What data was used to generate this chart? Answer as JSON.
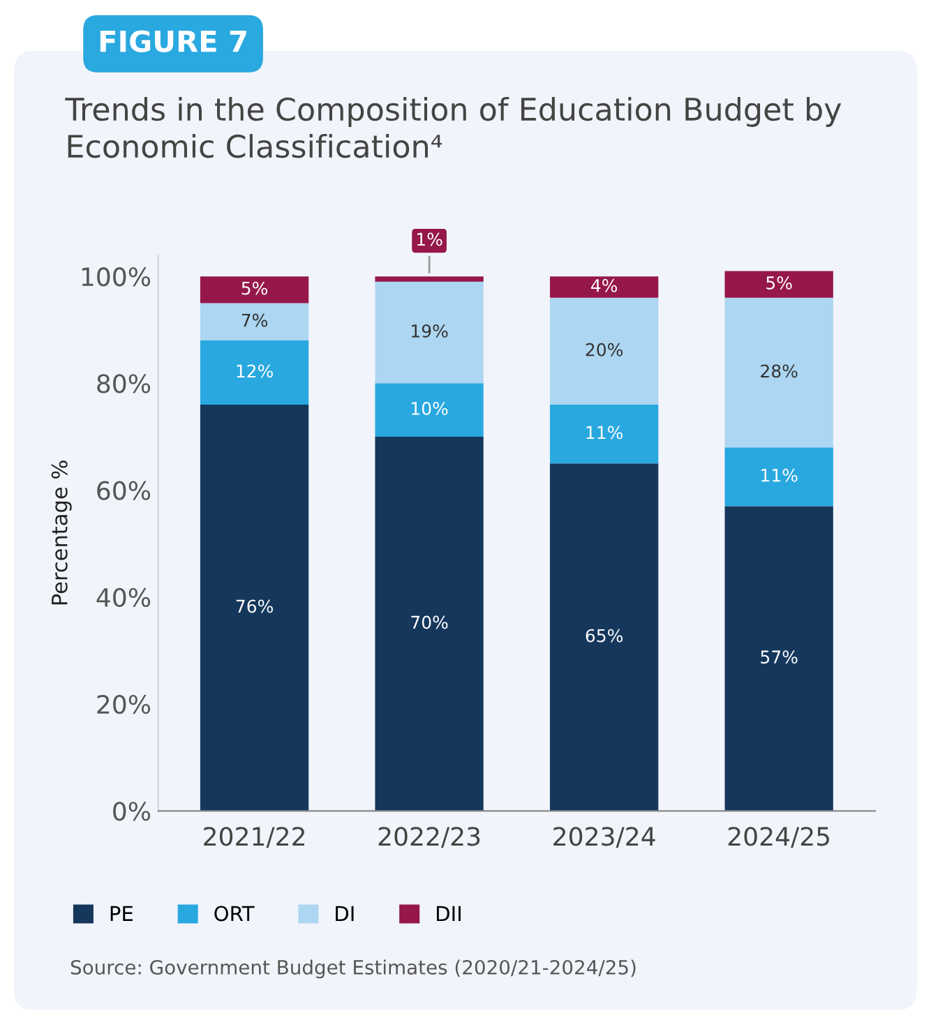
{
  "chart_data": {
    "type": "bar",
    "stacked": true,
    "title": "Trends in the Composition of Education Budget by Economic Classification⁴",
    "ylabel": "Percentage %",
    "categories": [
      "2021/22",
      "2022/23",
      "2023/24",
      "2024/25"
    ],
    "series": [
      {
        "name": "PE",
        "color": "#15375c",
        "values": [
          76,
          70,
          65,
          57
        ],
        "value_labels": [
          "76%",
          "70%",
          "65%",
          "57%"
        ]
      },
      {
        "name": "ORT",
        "color": "#29a8e0",
        "values": [
          12,
          10,
          11,
          11
        ],
        "value_labels": [
          "12%",
          "10%",
          "11%",
          "11%"
        ]
      },
      {
        "name": "DI",
        "color": "#acd6f1",
        "values": [
          7,
          19,
          20,
          28
        ],
        "value_labels": [
          "7%",
          "19%",
          "20%",
          "28%"
        ]
      },
      {
        "name": "DII",
        "color": "#96174a",
        "values": [
          5,
          1,
          4,
          5
        ],
        "value_labels": [
          "5%",
          "1%",
          "4%",
          "5%"
        ]
      }
    ],
    "ylim": [
      0,
      104
    ],
    "yticks": [
      {
        "value": 0,
        "label": "0%"
      },
      {
        "value": 20,
        "label": "20%"
      },
      {
        "value": 40,
        "label": "40%"
      },
      {
        "value": 60,
        "label": "60%"
      },
      {
        "value": 80,
        "label": "80%"
      },
      {
        "value": 100,
        "label": "100%"
      }
    ],
    "grid": false,
    "legend": "bottom left",
    "annotations": [
      "FIGURE 7",
      "Source: Government Budget Estimates (2020/21-2024/25)"
    ]
  }
}
